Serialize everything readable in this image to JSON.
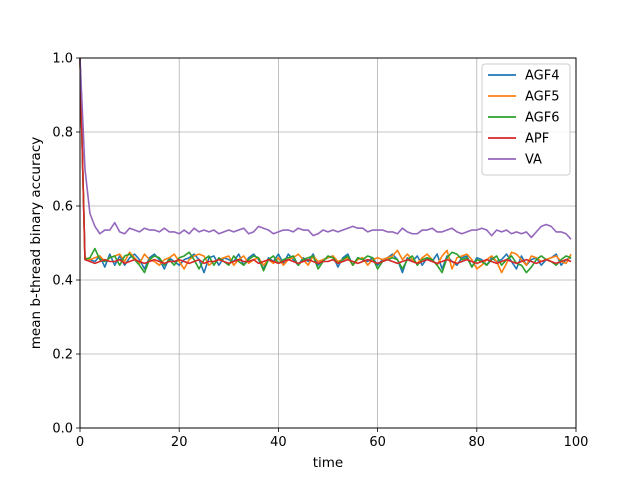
{
  "chart_data": {
    "type": "line",
    "title": "",
    "xlabel": "time",
    "ylabel": "mean b-thread binary accuracy",
    "xlim": [
      0,
      100
    ],
    "ylim": [
      0.0,
      1.0
    ],
    "xticks": [
      "0",
      "20",
      "40",
      "60",
      "80",
      "100"
    ],
    "yticks": [
      "0.0",
      "0.2",
      "0.4",
      "0.6",
      "0.8",
      "1.0"
    ],
    "grid": true,
    "legend_position": "top-right",
    "x": [
      0,
      1,
      2,
      3,
      4,
      5,
      6,
      7,
      8,
      9,
      10,
      11,
      12,
      13,
      14,
      15,
      16,
      17,
      18,
      19,
      20,
      21,
      22,
      23,
      24,
      25,
      26,
      27,
      28,
      29,
      30,
      31,
      32,
      33,
      34,
      35,
      36,
      37,
      38,
      39,
      40,
      41,
      42,
      43,
      44,
      45,
      46,
      47,
      48,
      49,
      50,
      51,
      52,
      53,
      54,
      55,
      56,
      57,
      58,
      59,
      60,
      61,
      62,
      63,
      64,
      65,
      66,
      67,
      68,
      69,
      70,
      71,
      72,
      73,
      74,
      75,
      76,
      77,
      78,
      79,
      80,
      81,
      82,
      83,
      84,
      85,
      86,
      87,
      88,
      89,
      90,
      91,
      92,
      93,
      94,
      95,
      96,
      97,
      98,
      99
    ],
    "series": [
      {
        "name": "AGF4",
        "color": "#1f77b4",
        "values": [
          1.0,
          0.46,
          0.455,
          0.45,
          0.465,
          0.435,
          0.47,
          0.44,
          0.465,
          0.44,
          0.46,
          0.47,
          0.455,
          0.43,
          0.46,
          0.47,
          0.455,
          0.43,
          0.46,
          0.45,
          0.44,
          0.455,
          0.46,
          0.47,
          0.455,
          0.42,
          0.46,
          0.465,
          0.44,
          0.46,
          0.455,
          0.45,
          0.47,
          0.44,
          0.46,
          0.47,
          0.455,
          0.43,
          0.46,
          0.45,
          0.47,
          0.445,
          0.47,
          0.455,
          0.44,
          0.46,
          0.45,
          0.47,
          0.44,
          0.455,
          0.46,
          0.465,
          0.435,
          0.46,
          0.47,
          0.44,
          0.46,
          0.455,
          0.45,
          0.46,
          0.44,
          0.455,
          0.46,
          0.47,
          0.455,
          0.42,
          0.46,
          0.45,
          0.465,
          0.44,
          0.46,
          0.45,
          0.47,
          0.43,
          0.465,
          0.45,
          0.44,
          0.46,
          0.465,
          0.435,
          0.46,
          0.455,
          0.44,
          0.46,
          0.45,
          0.455,
          0.47,
          0.45,
          0.43,
          0.465,
          0.44,
          0.455,
          0.46,
          0.44,
          0.455,
          0.46,
          0.47,
          0.44,
          0.455,
          0.46
        ]
      },
      {
        "name": "AGF5",
        "color": "#ff7f0e",
        "values": [
          1.0,
          0.46,
          0.455,
          0.46,
          0.465,
          0.45,
          0.46,
          0.465,
          0.47,
          0.45,
          0.475,
          0.46,
          0.445,
          0.47,
          0.455,
          0.45,
          0.44,
          0.455,
          0.46,
          0.47,
          0.45,
          0.43,
          0.455,
          0.465,
          0.47,
          0.465,
          0.44,
          0.45,
          0.455,
          0.46,
          0.465,
          0.44,
          0.455,
          0.465,
          0.445,
          0.455,
          0.46,
          0.44,
          0.455,
          0.445,
          0.46,
          0.44,
          0.455,
          0.46,
          0.47,
          0.455,
          0.44,
          0.465,
          0.45,
          0.455,
          0.46,
          0.465,
          0.45,
          0.455,
          0.46,
          0.44,
          0.455,
          0.46,
          0.44,
          0.455,
          0.46,
          0.455,
          0.46,
          0.465,
          0.48,
          0.455,
          0.47,
          0.455,
          0.445,
          0.46,
          0.47,
          0.455,
          0.44,
          0.465,
          0.48,
          0.43,
          0.46,
          0.465,
          0.47,
          0.455,
          0.43,
          0.44,
          0.455,
          0.465,
          0.45,
          0.42,
          0.445,
          0.475,
          0.47,
          0.455,
          0.44,
          0.465,
          0.46,
          0.45,
          0.455,
          0.46,
          0.465,
          0.45,
          0.445,
          0.47
        ]
      },
      {
        "name": "AGF6",
        "color": "#2ca02c",
        "values": [
          1.0,
          0.455,
          0.46,
          0.485,
          0.455,
          0.45,
          0.46,
          0.465,
          0.44,
          0.465,
          0.47,
          0.455,
          0.44,
          0.42,
          0.455,
          0.465,
          0.46,
          0.44,
          0.455,
          0.44,
          0.46,
          0.465,
          0.475,
          0.455,
          0.43,
          0.455,
          0.465,
          0.44,
          0.46,
          0.45,
          0.44,
          0.465,
          0.45,
          0.44,
          0.455,
          0.465,
          0.46,
          0.425,
          0.455,
          0.465,
          0.445,
          0.455,
          0.46,
          0.465,
          0.44,
          0.455,
          0.46,
          0.465,
          0.43,
          0.45,
          0.465,
          0.46,
          0.445,
          0.455,
          0.465,
          0.44,
          0.46,
          0.455,
          0.465,
          0.46,
          0.43,
          0.45,
          0.455,
          0.46,
          0.455,
          0.43,
          0.455,
          0.465,
          0.44,
          0.455,
          0.46,
          0.455,
          0.44,
          0.42,
          0.46,
          0.475,
          0.47,
          0.455,
          0.46,
          0.435,
          0.455,
          0.45,
          0.44,
          0.455,
          0.465,
          0.44,
          0.455,
          0.465,
          0.445,
          0.44,
          0.42,
          0.435,
          0.455,
          0.465,
          0.455,
          0.45,
          0.44,
          0.455,
          0.465,
          0.46
        ]
      },
      {
        "name": "APF",
        "color": "#d62728",
        "values": [
          1.0,
          0.455,
          0.45,
          0.445,
          0.45,
          0.455,
          0.45,
          0.45,
          0.455,
          0.445,
          0.45,
          0.455,
          0.45,
          0.445,
          0.45,
          0.455,
          0.45,
          0.445,
          0.45,
          0.45,
          0.455,
          0.45,
          0.445,
          0.45,
          0.455,
          0.445,
          0.45,
          0.45,
          0.455,
          0.45,
          0.445,
          0.45,
          0.455,
          0.45,
          0.45,
          0.455,
          0.445,
          0.45,
          0.455,
          0.45,
          0.445,
          0.45,
          0.455,
          0.45,
          0.445,
          0.45,
          0.455,
          0.45,
          0.445,
          0.45,
          0.45,
          0.455,
          0.445,
          0.45,
          0.455,
          0.45,
          0.445,
          0.45,
          0.455,
          0.45,
          0.445,
          0.45,
          0.455,
          0.45,
          0.445,
          0.45,
          0.455,
          0.45,
          0.445,
          0.45,
          0.455,
          0.45,
          0.445,
          0.45,
          0.455,
          0.45,
          0.445,
          0.45,
          0.455,
          0.45,
          0.445,
          0.45,
          0.455,
          0.45,
          0.445,
          0.45,
          0.455,
          0.45,
          0.445,
          0.45,
          0.455,
          0.45,
          0.445,
          0.45,
          0.455,
          0.45,
          0.445,
          0.45,
          0.455,
          0.45
        ]
      },
      {
        "name": "VA",
        "color": "#9467bd",
        "values": [
          1.0,
          0.7,
          0.58,
          0.545,
          0.525,
          0.535,
          0.535,
          0.555,
          0.53,
          0.525,
          0.54,
          0.535,
          0.53,
          0.54,
          0.535,
          0.535,
          0.53,
          0.54,
          0.53,
          0.53,
          0.525,
          0.535,
          0.525,
          0.54,
          0.53,
          0.535,
          0.53,
          0.535,
          0.525,
          0.53,
          0.535,
          0.53,
          0.535,
          0.54,
          0.525,
          0.53,
          0.545,
          0.54,
          0.535,
          0.525,
          0.53,
          0.535,
          0.535,
          0.53,
          0.54,
          0.535,
          0.535,
          0.52,
          0.525,
          0.535,
          0.53,
          0.535,
          0.53,
          0.535,
          0.54,
          0.545,
          0.54,
          0.54,
          0.53,
          0.535,
          0.535,
          0.535,
          0.53,
          0.53,
          0.525,
          0.54,
          0.53,
          0.525,
          0.525,
          0.535,
          0.535,
          0.54,
          0.53,
          0.53,
          0.535,
          0.54,
          0.53,
          0.525,
          0.53,
          0.535,
          0.535,
          0.54,
          0.535,
          0.52,
          0.535,
          0.53,
          0.535,
          0.525,
          0.53,
          0.525,
          0.53,
          0.515,
          0.53,
          0.545,
          0.55,
          0.545,
          0.53,
          0.53,
          0.525,
          0.51
        ]
      }
    ]
  }
}
